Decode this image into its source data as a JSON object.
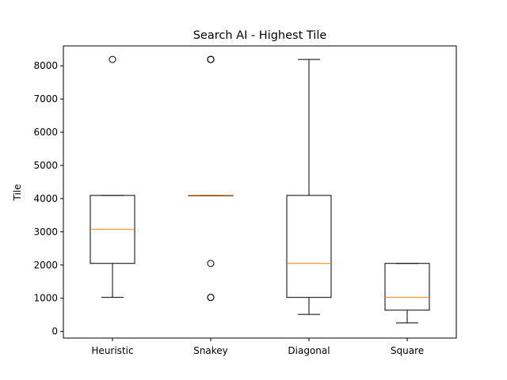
{
  "chart_data": {
    "type": "box",
    "title": "Search AI - Highest Tile",
    "xlabel": "",
    "ylabel": "Tile",
    "ylim": [
      -200,
      8600
    ],
    "yticks": [
      0,
      1000,
      2000,
      3000,
      4000,
      5000,
      6000,
      7000,
      8000
    ],
    "grid": false,
    "categories": [
      "Heuristic",
      "Snakey",
      "Diagonal",
      "Square"
    ],
    "boxes": [
      {
        "name": "Heuristic",
        "whisker_low": 1024,
        "q1": 2048,
        "median": 3072,
        "q3": 4096,
        "whisker_high": 4096,
        "outliers": [
          8192
        ]
      },
      {
        "name": "Snakey",
        "whisker_low": 4096,
        "q1": 4096,
        "median": 4096,
        "q3": 4096,
        "whisker_high": 4096,
        "outliers": [
          1024,
          1024,
          2048,
          8192,
          8192,
          8192
        ]
      },
      {
        "name": "Diagonal",
        "whisker_low": 512,
        "q1": 1024,
        "median": 2048,
        "q3": 4096,
        "whisker_high": 8192,
        "outliers": []
      },
      {
        "name": "Square",
        "whisker_low": 256,
        "q1": 640,
        "median": 1024,
        "q3": 2048,
        "whisker_high": 2048,
        "outliers": []
      }
    ],
    "colors": {
      "box": "#000000",
      "median": "#ff7f0e",
      "background": "#ffffff"
    }
  }
}
